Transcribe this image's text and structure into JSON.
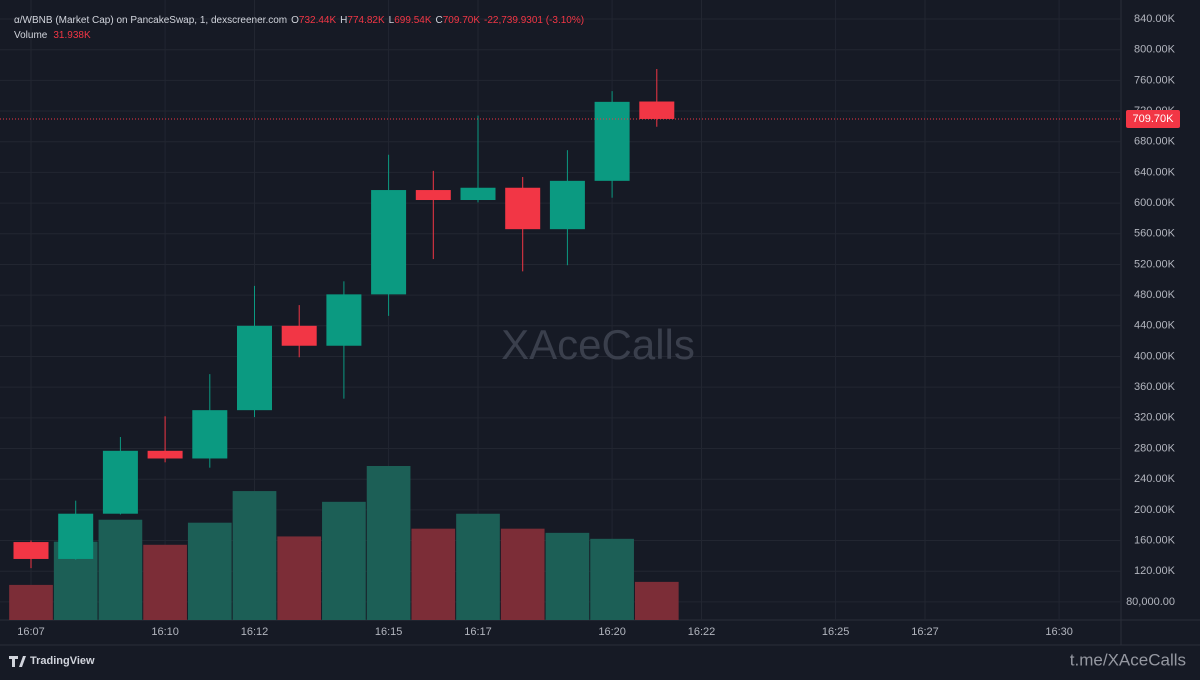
{
  "chart_data": {
    "type": "candlestick",
    "title": "α/WBNB (Market Cap) on PancakeSwap, 1, dexscreener.com",
    "legend": {
      "o_key": "O",
      "o": "732.44K",
      "h_key": "H",
      "h": "774.82K",
      "l_key": "L",
      "l": "699.54K",
      "c_key": "C",
      "c": "709.70K",
      "change": "-22,739.9301 (-3.10%)",
      "volume_key": "Volume",
      "volume": "31.938K"
    },
    "last_price_label": "709.70K",
    "watermark": "XAceCalls",
    "brand": "TradingView",
    "footer_link": "t.me/XAceCalls",
    "categories": [
      "16:07",
      null,
      null,
      "16:10",
      null,
      "16:12",
      null,
      null,
      "16:15",
      null,
      "16:17",
      null,
      null,
      "16:20",
      null,
      "16:22",
      null,
      null,
      "16:25",
      null,
      "16:27",
      null,
      null,
      "16:30",
      null
    ],
    "open": [
      158,
      136,
      195,
      277,
      267,
      330,
      440,
      414,
      481,
      617,
      604,
      620,
      566,
      629,
      732.44,
      null,
      null,
      null,
      null,
      null,
      null,
      null,
      null,
      null,
      null
    ],
    "high": [
      160,
      212,
      295,
      322,
      377,
      492,
      467,
      498,
      663,
      642,
      714,
      634,
      669,
      746,
      774.82,
      null,
      null,
      null,
      null,
      null,
      null,
      null,
      null,
      null,
      null
    ],
    "low": [
      124,
      135,
      194,
      262,
      255,
      321,
      399,
      345,
      453,
      527,
      601,
      511,
      519,
      607,
      699.54,
      null,
      null,
      null,
      null,
      null,
      null,
      null,
      null,
      null,
      null
    ],
    "close": [
      136,
      195,
      277,
      267,
      330,
      440,
      414,
      481,
      617,
      604,
      620,
      566,
      629,
      732,
      709.7,
      null,
      null,
      null,
      null,
      null,
      null,
      null,
      null,
      null,
      null
    ],
    "volume": [
      29.4,
      65.6,
      84,
      63,
      81.5,
      108,
      70,
      99,
      129,
      76.5,
      89,
      76.5,
      73,
      68,
      31.938,
      null,
      null,
      null,
      null,
      null,
      null,
      null,
      null,
      null,
      null
    ],
    "up_color": "#0b9a81",
    "down_color": "#f23645",
    "volume_up_color": "#1c5f56",
    "volume_down_color": "#7c2d37",
    "ylim": [
      56.4,
      864.8
    ],
    "yticks": [
      {
        "value": 80,
        "label": "80,000.00"
      },
      {
        "value": 120,
        "label": "120.00K"
      },
      {
        "value": 160,
        "label": "160.00K"
      },
      {
        "value": 200,
        "label": "200.00K"
      },
      {
        "value": 240,
        "label": "240.00K"
      },
      {
        "value": 280,
        "label": "280.00K"
      },
      {
        "value": 320,
        "label": "320.00K"
      },
      {
        "value": 360,
        "label": "360.00K"
      },
      {
        "value": 400,
        "label": "400.00K"
      },
      {
        "value": 440,
        "label": "440.00K"
      },
      {
        "value": 480,
        "label": "480.00K"
      },
      {
        "value": 520,
        "label": "520.00K"
      },
      {
        "value": 560,
        "label": "560.00K"
      },
      {
        "value": 600,
        "label": "600.00K"
      },
      {
        "value": 640,
        "label": "640.00K"
      },
      {
        "value": 680,
        "label": "680.00K"
      },
      {
        "value": 720,
        "label": "720.00K"
      },
      {
        "value": 760,
        "label": "760.00K"
      },
      {
        "value": 800,
        "label": "800.00K"
      },
      {
        "value": 840,
        "label": "840.00K"
      }
    ],
    "grid": true
  }
}
